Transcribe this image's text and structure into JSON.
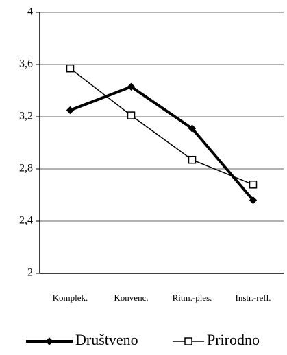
{
  "chart_data": {
    "type": "line",
    "categories": [
      "Komplek.",
      "Konvenc.",
      "Ritm.-ples.",
      "Instr.-refl."
    ],
    "series": [
      {
        "name": "Društveno",
        "color": "#000000",
        "marker": "diamond",
        "values": [
          3.25,
          3.43,
          3.11,
          2.56
        ]
      },
      {
        "name": "Prirodno",
        "color": "#000000",
        "marker": "square",
        "values": [
          3.57,
          3.21,
          2.87,
          2.68
        ]
      }
    ],
    "ylim": [
      2,
      4
    ],
    "yticks": [
      2,
      {
        "value": 2.4,
        "label": "2,4"
      },
      {
        "value": 2.8,
        "label": "2,8"
      },
      {
        "value": 3.2,
        "label": "3,2"
      },
      {
        "value": 3.6,
        "label": "3,6"
      },
      4
    ],
    "grid": true,
    "legend": "bottom"
  }
}
